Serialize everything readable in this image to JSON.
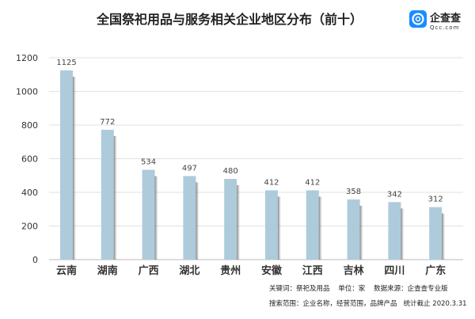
{
  "logo": {
    "name": "企查查",
    "sub": "Qcc.com",
    "color": "#1a8cff"
  },
  "notes": {
    "line1": "关键词：祭祀及用品    单位：家    数据来源：企查查专业版",
    "line2": "搜索范围：企业名称，经营范围，品牌产品   统计截止 2020.3.31"
  },
  "chart_data": {
    "type": "bar",
    "title": "全国祭祀用品与服务相关企业地区分布（前十）",
    "categories": [
      "云南",
      "湖南",
      "广西",
      "湖北",
      "贵州",
      "安徽",
      "江西",
      "吉林",
      "四川",
      "广东"
    ],
    "values": [
      1125,
      772,
      534,
      497,
      480,
      412,
      412,
      358,
      342,
      312
    ],
    "ylim": [
      0,
      1200
    ],
    "yticks": [
      0,
      200,
      400,
      600,
      800,
      1000,
      1200
    ],
    "grid": true,
    "bar_color": "#aecbdb",
    "shadow_color": "#555555",
    "xlabel": "",
    "ylabel": ""
  }
}
